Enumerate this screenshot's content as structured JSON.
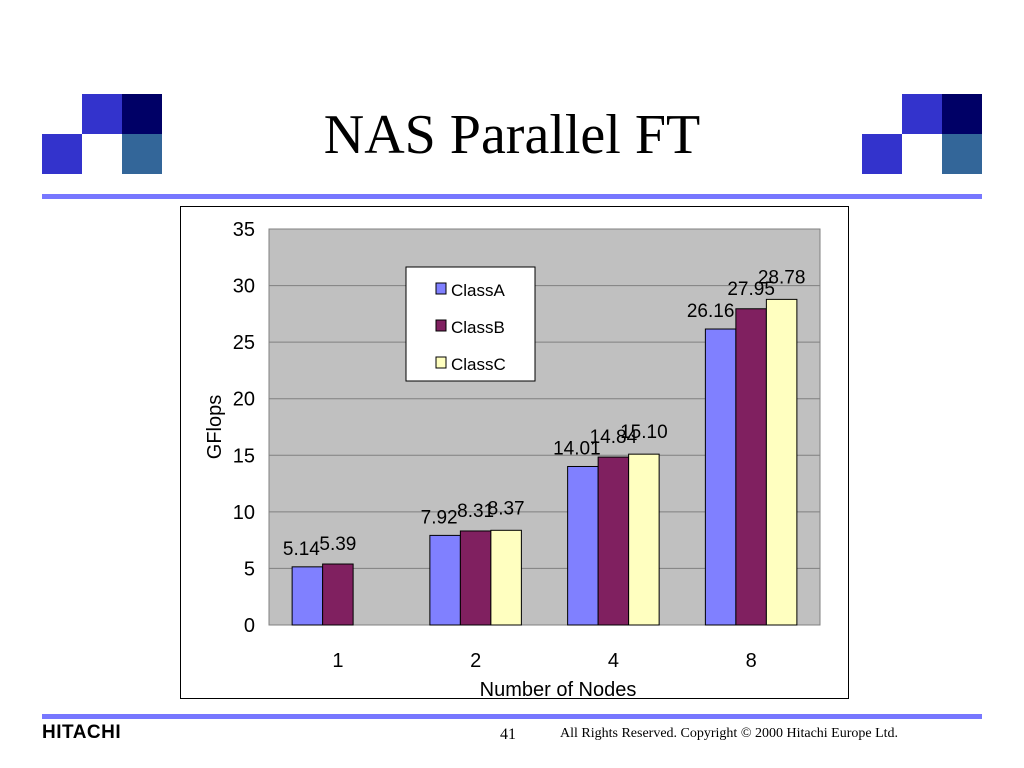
{
  "slide": {
    "title": "NAS Parallel FT",
    "page_number": "41",
    "copyright": "All Rights Reserved. Copyright © 2000 Hitachi Europe Ltd.",
    "logo_text": "HITACHI"
  },
  "colors": {
    "deco_blue": "#3333cc",
    "deco_navy": "#000066",
    "deco_steel": "#336699",
    "rule": "#7777ff",
    "plot_bg": "#c0c0c0"
  },
  "chart_data": {
    "type": "bar",
    "title": "",
    "xlabel": "Number of Nodes",
    "ylabel": "GFlops",
    "categories": [
      "1",
      "2",
      "4",
      "8"
    ],
    "ylim": [
      0,
      35
    ],
    "yticks": [
      0,
      5,
      10,
      15,
      20,
      25,
      30,
      35
    ],
    "grid": true,
    "legend_position": "upper-center",
    "series": [
      {
        "name": "ClassA",
        "color": "#8080ff",
        "values": [
          5.14,
          7.92,
          14.01,
          26.16
        ],
        "labels": [
          "5.14",
          "7.92",
          "14.01",
          "26.16"
        ]
      },
      {
        "name": "ClassB",
        "color": "#802060",
        "values": [
          5.39,
          8.31,
          14.84,
          27.95
        ],
        "labels": [
          "5.39",
          "8.31",
          "14.84",
          "27.95"
        ]
      },
      {
        "name": "ClassC",
        "color": "#ffffc0",
        "values": [
          null,
          8.37,
          15.1,
          28.78
        ],
        "labels": [
          null,
          "8.37",
          "15.10",
          "28.78"
        ]
      }
    ]
  }
}
